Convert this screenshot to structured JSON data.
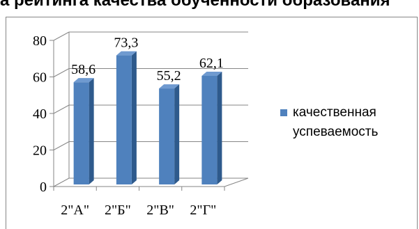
{
  "heading_fragment": "а рейтинга качества обученности образования",
  "colors": {
    "bar_front": "#4f81bd",
    "bar_side": "#2e5a8c",
    "bar_top": "#6f9ad0",
    "grid": "#868686"
  },
  "chart_data": {
    "type": "bar",
    "style": "3d-clustered-column",
    "categories": [
      "2\"А\"",
      "2\"Б\"",
      "2\"В\"",
      "2\"Г\""
    ],
    "series": [
      {
        "name": "качественная успеваемость",
        "values": [
          58.6,
          73.3,
          55.2,
          62.1
        ]
      }
    ],
    "data_labels": [
      "58,6",
      "73,3",
      "55,2",
      "62,1"
    ],
    "y_ticks": [
      0,
      20,
      40,
      60,
      80
    ],
    "y_tick_labels": [
      "0",
      "20",
      "40",
      "60",
      "80"
    ],
    "ylim": [
      0,
      80
    ],
    "grid": true,
    "legend_position": "right",
    "title": "",
    "xlabel": "",
    "ylabel": ""
  }
}
